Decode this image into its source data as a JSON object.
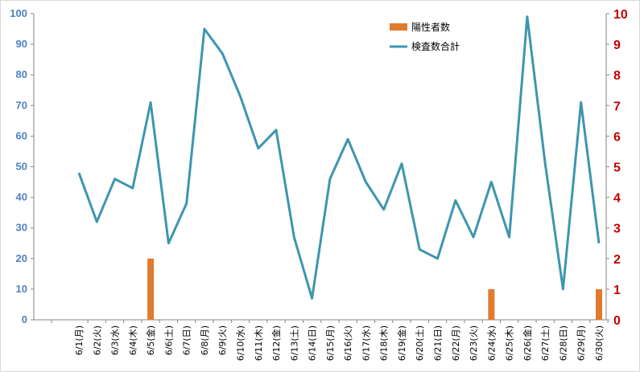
{
  "chart_data": {
    "type": "bar",
    "title": "",
    "xlabel": "",
    "ylabel": "",
    "categories": [
      "6/1(月)",
      "6/2(火)",
      "6/3(水)",
      "6/4(木)",
      "6/5(金)",
      "6/6(土)",
      "6/7(日)",
      "6/8(月)",
      "6/9(火)",
      "6/10(水)",
      "6/11(木)",
      "6/12(金)",
      "6/13(土)",
      "6/14(日)",
      "6/15(月)",
      "6/16(火)",
      "6/17(水)",
      "6/18(木)",
      "6/19(金)",
      "6/20(土)",
      "6/21(日)",
      "6/22(月)",
      "6/23(火)",
      "6/24(水)",
      "6/25(木)",
      "6/26(金)",
      "6/27(土)",
      "6/28(日)",
      "6/29(月)",
      "6/30(火)"
    ],
    "left_axis": {
      "min": 0,
      "max": 100,
      "step": 10,
      "color": "#4f81bd",
      "ticks": [
        "0",
        "10",
        "20",
        "30",
        "40",
        "50",
        "60",
        "70",
        "80",
        "90",
        "100"
      ]
    },
    "right_axis": {
      "min": 0,
      "max": 10,
      "step": 1,
      "color": "#c00000",
      "ticks": [
        "0",
        "1",
        "2",
        "3",
        "4",
        "5",
        "6",
        "7",
        "8",
        "9",
        "10"
      ]
    },
    "series": [
      {
        "name": "陽性者数",
        "kind": "bar",
        "axis": "right",
        "color": "#e07b2e",
        "values": [
          0,
          0,
          0,
          0,
          2,
          0,
          0,
          0,
          0,
          0,
          0,
          0,
          0,
          0,
          0,
          0,
          0,
          0,
          0,
          0,
          0,
          0,
          0,
          1,
          0,
          0,
          0,
          0,
          0,
          1
        ]
      },
      {
        "name": "検査数合計",
        "kind": "line",
        "axis": "left",
        "color": "#3d96ae",
        "values": [
          48,
          32,
          46,
          43,
          71,
          25,
          38,
          95,
          87,
          73,
          56,
          62,
          27,
          7,
          46,
          59,
          45,
          36,
          51,
          23,
          20,
          39,
          27,
          45,
          27,
          99,
          51,
          10,
          71,
          25
        ]
      }
    ],
    "grid": false,
    "legend_position": "top-right"
  }
}
